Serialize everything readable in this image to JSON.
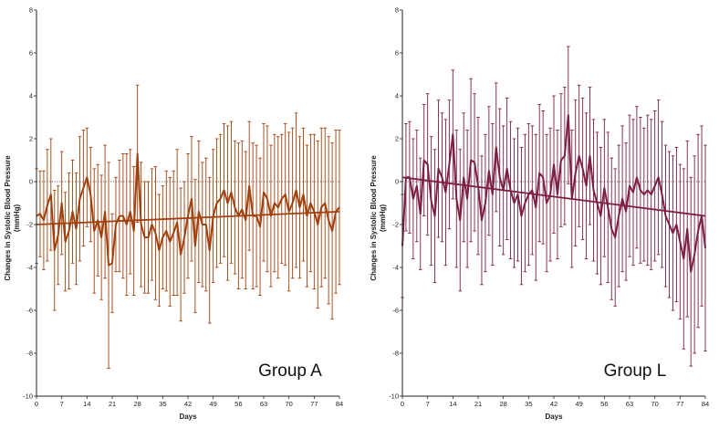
{
  "chart_data": [
    {
      "type": "line",
      "title": "Group A",
      "xlabel": "Days",
      "ylabel": "Changes in Systolic Blood Pressure (mmHg)",
      "xlim": [
        0,
        84
      ],
      "ylim": [
        -10,
        8
      ],
      "xticks": [
        0,
        7,
        14,
        21,
        28,
        35,
        42,
        49,
        56,
        63,
        70,
        77,
        84
      ],
      "yticks": [
        -10,
        -8,
        -6,
        -4,
        -2,
        0,
        2,
        4,
        6,
        8
      ],
      "reference_line_y": 0,
      "color": "#a0410d",
      "trend": {
        "start": [
          0,
          -2.0
        ],
        "end": [
          84,
          -1.4
        ]
      },
      "series": [
        {
          "name": "mean",
          "x": [
            0,
            1,
            2,
            3,
            4,
            5,
            6,
            7,
            8,
            9,
            10,
            11,
            12,
            13,
            14,
            15,
            16,
            17,
            18,
            19,
            20,
            21,
            22,
            23,
            24,
            25,
            26,
            27,
            28,
            29,
            30,
            31,
            32,
            33,
            34,
            35,
            36,
            37,
            38,
            39,
            40,
            41,
            42,
            43,
            44,
            45,
            46,
            47,
            48,
            49,
            50,
            51,
            52,
            53,
            54,
            55,
            56,
            57,
            58,
            59,
            60,
            61,
            62,
            63,
            64,
            65,
            66,
            67,
            68,
            69,
            70,
            71,
            72,
            73,
            74,
            75,
            76,
            77,
            78,
            79,
            80,
            81,
            82,
            83,
            84
          ],
          "values": [
            -1.6,
            -1.5,
            -1.8,
            -1.1,
            -0.6,
            -3.2,
            -2.5,
            -1.0,
            -2.8,
            -2.3,
            -1.4,
            -2.2,
            -0.8,
            -0.3,
            0.2,
            -0.6,
            -2.3,
            -1.8,
            -2.6,
            -1.4,
            -3.9,
            -3.8,
            -2.0,
            -1.6,
            -1.6,
            -2.0,
            -1.4,
            -2.3,
            1.3,
            -2.0,
            -2.6,
            -2.6,
            -2.0,
            -2.4,
            -3.2,
            -2.6,
            -2.3,
            -2.8,
            -2.4,
            -1.9,
            -3.4,
            -2.6,
            -1.6,
            -0.8,
            -3.0,
            -1.4,
            -2.0,
            -2.0,
            -3.2,
            -1.6,
            -1.0,
            -0.8,
            -0.4,
            -1.0,
            -0.5,
            -1.2,
            -1.6,
            -1.3,
            -1.8,
            -0.2,
            -1.6,
            -1.6,
            -2.1,
            -0.5,
            -0.8,
            -1.6,
            -1.0,
            -1.2,
            -0.8,
            -0.6,
            -1.4,
            -1.0,
            -0.4,
            -1.2,
            -0.6,
            -1.6,
            -1.0,
            -1.4,
            -2.0,
            -1.2,
            -1.0,
            -1.8,
            -2.3,
            -1.4,
            -1.2
          ],
          "error": [
            2.2,
            2.0,
            2.3,
            2.6,
            2.6,
            2.8,
            2.3,
            2.4,
            2.3,
            2.7,
            2.4,
            2.6,
            2.9,
            2.7,
            2.3,
            2.2,
            2.9,
            2.6,
            2.9,
            3.1,
            4.8,
            2.3,
            2.2,
            2.6,
            2.9,
            3.3,
            2.9,
            3.0,
            3.2,
            2.9,
            2.6,
            2.6,
            2.6,
            3.1,
            2.6,
            2.4,
            2.8,
            3.0,
            2.9,
            3.4,
            3.1,
            2.6,
            2.9,
            2.9,
            3.1,
            3.3,
            2.9,
            3.1,
            3.4,
            3.1,
            3.0,
            3.0,
            3.1,
            3.6,
            3.3,
            3.1,
            3.4,
            3.2,
            3.2,
            3.0,
            3.4,
            3.3,
            3.2,
            3.2,
            3.4,
            3.3,
            3.2,
            3.3,
            3.0,
            3.3,
            3.7,
            3.5,
            3.6,
            3.3,
            3.1,
            3.3,
            3.2,
            3.6,
            3.9,
            3.7,
            3.5,
            3.9,
            4.1,
            3.8,
            3.6
          ]
        }
      ]
    },
    {
      "type": "line",
      "title": "Group L",
      "xlabel": "Days",
      "ylabel": "Changes in Systolic Blood Pressure (mmHg)",
      "xlim": [
        0,
        84
      ],
      "ylim": [
        -10,
        8
      ],
      "xticks": [
        0,
        7,
        14,
        21,
        28,
        35,
        42,
        49,
        56,
        63,
        70,
        77,
        84
      ],
      "yticks": [
        -10,
        -8,
        -6,
        -4,
        -2,
        0,
        2,
        4,
        6,
        8
      ],
      "reference_line_y": 0,
      "color": "#7d1f45",
      "trend": {
        "start": [
          0,
          0.2
        ],
        "end": [
          84,
          -1.6
        ]
      },
      "series": [
        {
          "name": "mean",
          "x": [
            0,
            1,
            2,
            3,
            4,
            5,
            6,
            7,
            8,
            9,
            10,
            11,
            12,
            13,
            14,
            15,
            16,
            17,
            18,
            19,
            20,
            21,
            22,
            23,
            24,
            25,
            26,
            27,
            28,
            29,
            30,
            31,
            32,
            33,
            34,
            35,
            36,
            37,
            38,
            39,
            40,
            41,
            42,
            43,
            44,
            45,
            46,
            47,
            48,
            49,
            50,
            51,
            52,
            53,
            54,
            55,
            56,
            57,
            58,
            59,
            60,
            61,
            62,
            63,
            64,
            65,
            66,
            67,
            68,
            69,
            70,
            71,
            72,
            73,
            74,
            75,
            76,
            77,
            78,
            79,
            80,
            81,
            82,
            83,
            84
          ],
          "values": [
            -3.0,
            0.2,
            0.2,
            -0.8,
            -0.2,
            -1.5,
            1.0,
            0.8,
            -0.9,
            -1.6,
            0.6,
            0.2,
            -0.5,
            0.8,
            2.2,
            -0.8,
            -1.8,
            0.2,
            -0.8,
            1.0,
            0.9,
            -0.2,
            -1.8,
            -1.0,
            0.5,
            -0.6,
            1.6,
            0.2,
            -0.4,
            0.6,
            -0.4,
            -1.0,
            -0.6,
            -1.6,
            -1.0,
            -0.6,
            -0.4,
            -1.2,
            0.4,
            0.2,
            -1.0,
            -0.6,
            0.8,
            -0.6,
            1.0,
            1.2,
            3.1,
            -0.8,
            0.4,
            1.2,
            0.6,
            -0.2,
            1.2,
            -0.4,
            -1.0,
            -1.6,
            -0.3,
            -1.2,
            -2.2,
            -2.6,
            -1.6,
            -0.8,
            -1.4,
            -0.2,
            -0.5,
            0.2,
            -0.4,
            -0.6,
            -0.4,
            -0.6,
            -0.2,
            0.2,
            -0.6,
            -1.6,
            -2.0,
            -2.4,
            -2.0,
            -2.8,
            -3.6,
            -2.2,
            -4.2,
            -3.4,
            -2.3,
            -1.6,
            -3.1
          ],
          "error": [
            2.4,
            2.5,
            2.6,
            2.8,
            2.6,
            2.6,
            2.6,
            3.3,
            3.0,
            3.1,
            3.2,
            3.0,
            3.4,
            3.0,
            3.0,
            3.2,
            3.3,
            3.0,
            3.2,
            3.8,
            3.2,
            3.2,
            3.0,
            3.2,
            3.0,
            3.3,
            3.0,
            3.2,
            3.0,
            3.3,
            3.2,
            3.0,
            3.1,
            3.2,
            3.2,
            3.3,
            3.0,
            3.4,
            3.2,
            3.1,
            3.2,
            3.1,
            3.2,
            3.0,
            3.1,
            3.2,
            3.2,
            3.2,
            3.4,
            3.3,
            3.3,
            3.4,
            3.2,
            3.3,
            3.3,
            3.2,
            3.2,
            3.5,
            3.3,
            3.2,
            3.3,
            3.4,
            3.2,
            3.3,
            3.4,
            3.3,
            3.4,
            3.1,
            3.5,
            3.5,
            3.5,
            3.6,
            3.4,
            3.3,
            3.4,
            3.6,
            3.6,
            3.6,
            4.2,
            4.1,
            4.4,
            4.6,
            4.5,
            4.2,
            4.8
          ]
        }
      ]
    }
  ]
}
